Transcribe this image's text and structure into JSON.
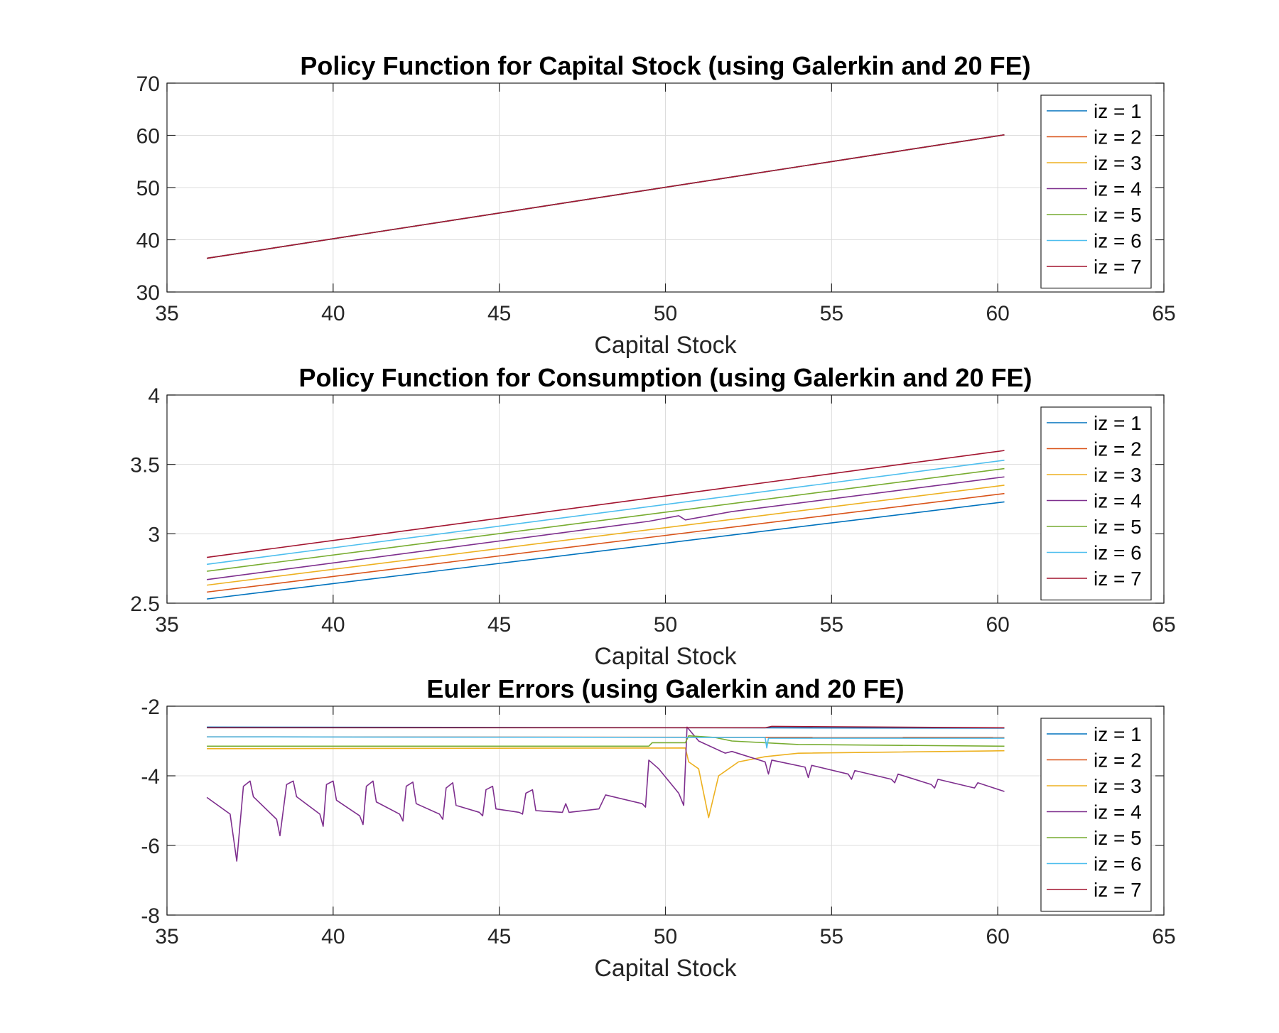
{
  "figure": {
    "background": "#ffffff",
    "series_colors": [
      "#0072BD",
      "#D95319",
      "#EDB120",
      "#7E2F8E",
      "#77AC30",
      "#4DBEEE",
      "#A2142F"
    ]
  },
  "chart_data": [
    {
      "type": "line",
      "title": "Policy Function for Capital Stock (using Galerkin and 20 FE)",
      "xlabel": "Capital Stock",
      "ylabel": "",
      "xlim": [
        35,
        65
      ],
      "ylim": [
        30,
        70
      ],
      "xticks": [
        "35",
        "40",
        "45",
        "50",
        "55",
        "60",
        "65"
      ],
      "yticks": [
        "30",
        "40",
        "50",
        "60",
        "70"
      ],
      "grid": true,
      "legend_position": "top-right",
      "series": [
        {
          "name": "iz = 1",
          "color": "#0072BD",
          "points": [
            [
              36.2,
              36.45
            ],
            [
              60.2,
              60.1
            ]
          ]
        },
        {
          "name": "iz = 2",
          "color": "#D95319",
          "points": [
            [
              36.2,
              36.45
            ],
            [
              60.2,
              60.1
            ]
          ]
        },
        {
          "name": "iz = 3",
          "color": "#EDB120",
          "points": [
            [
              36.2,
              36.45
            ],
            [
              60.2,
              60.1
            ]
          ]
        },
        {
          "name": "iz = 4",
          "color": "#7E2F8E",
          "points": [
            [
              36.2,
              36.45
            ],
            [
              60.2,
              60.1
            ]
          ]
        },
        {
          "name": "iz = 5",
          "color": "#77AC30",
          "points": [
            [
              36.2,
              36.45
            ],
            [
              60.2,
              60.1
            ]
          ]
        },
        {
          "name": "iz = 6",
          "color": "#4DBEEE",
          "points": [
            [
              36.2,
              36.45
            ],
            [
              60.2,
              60.1
            ]
          ]
        },
        {
          "name": "iz = 7",
          "color": "#A2142F",
          "points": [
            [
              36.2,
              36.45
            ],
            [
              60.2,
              60.1
            ]
          ]
        }
      ]
    },
    {
      "type": "line",
      "title": "Policy Function for Consumption (using Galerkin and 20 FE)",
      "xlabel": "Capital Stock",
      "ylabel": "",
      "xlim": [
        35,
        65
      ],
      "ylim": [
        2.5,
        4
      ],
      "xticks": [
        "35",
        "40",
        "45",
        "50",
        "55",
        "60",
        "65"
      ],
      "yticks": [
        "2.5",
        "3",
        "3.5",
        "4"
      ],
      "grid": true,
      "legend_position": "top-right",
      "series": [
        {
          "name": "iz = 1",
          "color": "#0072BD",
          "points": [
            [
              36.2,
              2.53
            ],
            [
              60.2,
              3.23
            ]
          ]
        },
        {
          "name": "iz = 2",
          "color": "#D95319",
          "points": [
            [
              36.2,
              2.58
            ],
            [
              60.2,
              3.29
            ]
          ]
        },
        {
          "name": "iz = 3",
          "color": "#EDB120",
          "points": [
            [
              36.2,
              2.63
            ],
            [
              60.2,
              3.35
            ]
          ]
        },
        {
          "name": "iz = 4",
          "color": "#7E2F8E",
          "points": [
            [
              36.2,
              2.67
            ],
            [
              49.5,
              3.09
            ],
            [
              50.4,
              3.13
            ],
            [
              50.6,
              3.1
            ],
            [
              52,
              3.16
            ],
            [
              60.2,
              3.41
            ]
          ]
        },
        {
          "name": "iz = 5",
          "color": "#77AC30",
          "points": [
            [
              36.2,
              2.73
            ],
            [
              60.2,
              3.47
            ]
          ]
        },
        {
          "name": "iz = 6",
          "color": "#4DBEEE",
          "points": [
            [
              36.2,
              2.78
            ],
            [
              60.2,
              3.53
            ]
          ]
        },
        {
          "name": "iz = 7",
          "color": "#A2142F",
          "points": [
            [
              36.2,
              2.83
            ],
            [
              60.2,
              3.6
            ]
          ]
        }
      ]
    },
    {
      "type": "line",
      "title": "Euler Errors (using Galerkin and 20 FE)",
      "xlabel": "Capital Stock",
      "ylabel": "",
      "xlim": [
        35,
        65
      ],
      "ylim": [
        -8,
        -2
      ],
      "xticks": [
        "35",
        "40",
        "45",
        "50",
        "55",
        "60",
        "65"
      ],
      "yticks": [
        "-8",
        "-6",
        "-4",
        "-2"
      ],
      "grid": true,
      "legend_position": "top-right",
      "series": [
        {
          "name": "iz = 1",
          "color": "#0072BD",
          "points": [
            [
              36.2,
              -2.6
            ],
            [
              60.2,
              -2.63
            ]
          ]
        },
        {
          "name": "iz = 2",
          "color": "#D95319",
          "points": [
            [
              36.2,
              -2.88
            ],
            [
              60.2,
              -2.9
            ]
          ]
        },
        {
          "name": "iz = 3",
          "color": "#EDB120",
          "points": [
            [
              36.2,
              -3.22
            ],
            [
              50.6,
              -3.2
            ],
            [
              50.7,
              -3.6
            ],
            [
              51,
              -3.8
            ],
            [
              51.3,
              -5.2
            ],
            [
              51.6,
              -4.0
            ],
            [
              52.2,
              -3.6
            ],
            [
              53,
              -3.45
            ],
            [
              54,
              -3.35
            ],
            [
              60.2,
              -3.28
            ]
          ]
        },
        {
          "name": "iz = 4",
          "color": "#7E2F8E",
          "points": [
            [
              36.2,
              -4.62
            ],
            [
              36.9,
              -5.1
            ],
            [
              37.1,
              -6.45
            ],
            [
              37.3,
              -4.3
            ],
            [
              37.5,
              -4.15
            ],
            [
              37.6,
              -4.6
            ],
            [
              38.3,
              -5.25
            ],
            [
              38.4,
              -5.72
            ],
            [
              38.6,
              -4.25
            ],
            [
              38.8,
              -4.15
            ],
            [
              38.9,
              -4.6
            ],
            [
              39.6,
              -5.1
            ],
            [
              39.7,
              -5.45
            ],
            [
              39.8,
              -4.25
            ],
            [
              40,
              -4.15
            ],
            [
              40.1,
              -4.7
            ],
            [
              40.8,
              -5.15
            ],
            [
              40.9,
              -5.4
            ],
            [
              41,
              -4.3
            ],
            [
              41.2,
              -4.15
            ],
            [
              41.3,
              -4.75
            ],
            [
              42,
              -5.1
            ],
            [
              42.1,
              -5.3
            ],
            [
              42.2,
              -4.3
            ],
            [
              42.4,
              -4.18
            ],
            [
              42.5,
              -4.8
            ],
            [
              43.2,
              -5.1
            ],
            [
              43.3,
              -5.25
            ],
            [
              43.4,
              -4.35
            ],
            [
              43.6,
              -4.2
            ],
            [
              43.7,
              -4.85
            ],
            [
              44.4,
              -5.05
            ],
            [
              44.5,
              -5.15
            ],
            [
              44.6,
              -4.4
            ],
            [
              44.8,
              -4.3
            ],
            [
              44.9,
              -4.95
            ],
            [
              45.6,
              -5.05
            ],
            [
              45.7,
              -5.1
            ],
            [
              45.8,
              -4.5
            ],
            [
              46,
              -4.4
            ],
            [
              46.1,
              -5.0
            ],
            [
              46.9,
              -5.05
            ],
            [
              47,
              -4.8
            ],
            [
              47.1,
              -5.05
            ],
            [
              48,
              -4.95
            ],
            [
              48.2,
              -4.55
            ],
            [
              49.3,
              -4.8
            ],
            [
              49.4,
              -4.9
            ],
            [
              49.5,
              -3.55
            ],
            [
              49.8,
              -3.8
            ],
            [
              50.4,
              -4.5
            ],
            [
              50.55,
              -4.85
            ],
            [
              50.65,
              -2.6
            ],
            [
              51,
              -3.0
            ],
            [
              51.8,
              -3.35
            ],
            [
              52,
              -3.3
            ],
            [
              53,
              -3.6
            ],
            [
              53.1,
              -3.95
            ],
            [
              53.2,
              -3.55
            ],
            [
              54.2,
              -3.75
            ],
            [
              54.3,
              -4.05
            ],
            [
              54.4,
              -3.7
            ],
            [
              55.5,
              -3.95
            ],
            [
              55.6,
              -4.1
            ],
            [
              55.7,
              -3.85
            ],
            [
              56.8,
              -4.1
            ],
            [
              56.9,
              -4.2
            ],
            [
              57,
              -3.95
            ],
            [
              58,
              -4.25
            ],
            [
              58.1,
              -4.35
            ],
            [
              58.2,
              -4.1
            ],
            [
              59.3,
              -4.35
            ],
            [
              59.4,
              -4.2
            ],
            [
              60.2,
              -4.45
            ]
          ]
        },
        {
          "name": "iz = 5",
          "color": "#77AC30",
          "points": [
            [
              36.2,
              -3.15
            ],
            [
              49.5,
              -3.15
            ],
            [
              49.6,
              -3.05
            ],
            [
              50.6,
              -3.05
            ],
            [
              50.7,
              -2.85
            ],
            [
              51.5,
              -2.9
            ],
            [
              52,
              -3.0
            ],
            [
              54,
              -3.1
            ],
            [
              60.2,
              -3.15
            ]
          ]
        },
        {
          "name": "iz = 6",
          "color": "#4DBEEE",
          "points": [
            [
              36.2,
              -2.88
            ],
            [
              53,
              -2.9
            ],
            [
              53.05,
              -3.2
            ],
            [
              53.1,
              -2.92
            ],
            [
              60.2,
              -2.92
            ]
          ]
        },
        {
          "name": "iz = 7",
          "color": "#A2142F",
          "points": [
            [
              36.2,
              -2.62
            ],
            [
              53,
              -2.62
            ],
            [
              53.2,
              -2.58
            ],
            [
              60.2,
              -2.62
            ]
          ]
        }
      ]
    }
  ]
}
